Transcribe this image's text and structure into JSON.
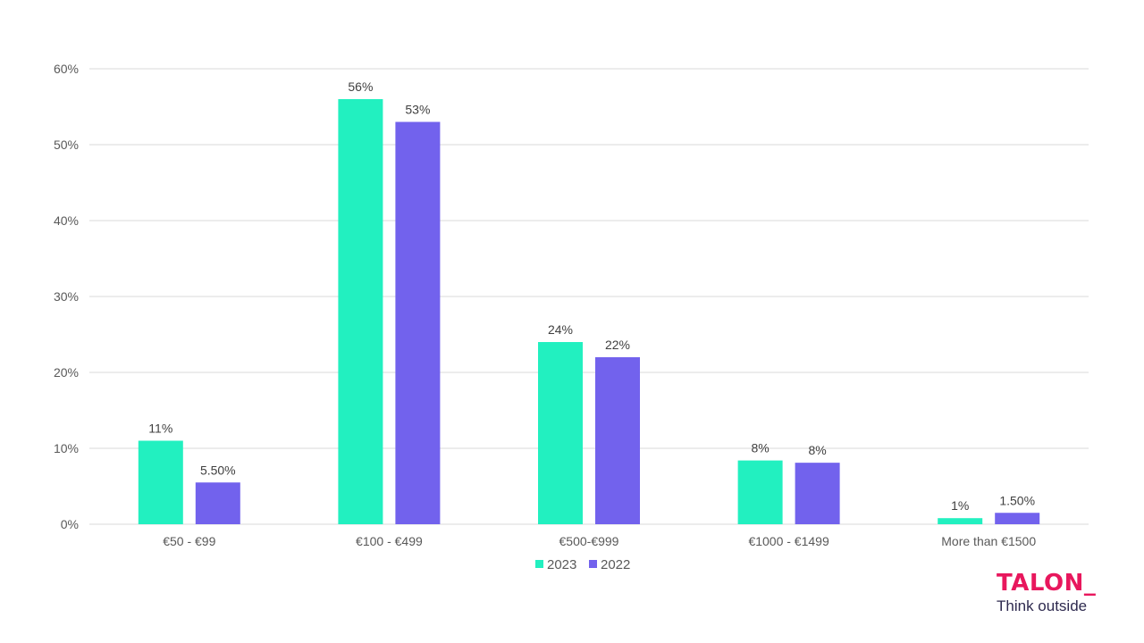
{
  "chart_data": {
    "type": "bar",
    "categories": [
      "€50 - €99",
      "€100 - €499",
      "€500-€999",
      "€1000 - €1499",
      "More than €1500"
    ],
    "series": [
      {
        "name": "2023",
        "color": "#22f0c0",
        "values": [
          11,
          56,
          24,
          8.4,
          0.8
        ],
        "labels": [
          "11%",
          "56%",
          "24%",
          "8%",
          "1%"
        ]
      },
      {
        "name": "2022",
        "color": "#7262ed",
        "values": [
          5.5,
          53,
          22,
          8.1,
          1.5
        ],
        "labels": [
          "5.50%",
          "53%",
          "22%",
          "8%",
          "1.50%"
        ]
      }
    ],
    "ylim": [
      0,
      60
    ],
    "yticks": [
      "0%",
      "10%",
      "20%",
      "30%",
      "40%",
      "50%",
      "60%"
    ],
    "grid": true,
    "legend": "bottom-center",
    "title": "",
    "xlabel": "",
    "ylabel": ""
  },
  "brand": {
    "name": "TALON_",
    "tagline": "Think outside",
    "color": "#e8175d"
  }
}
